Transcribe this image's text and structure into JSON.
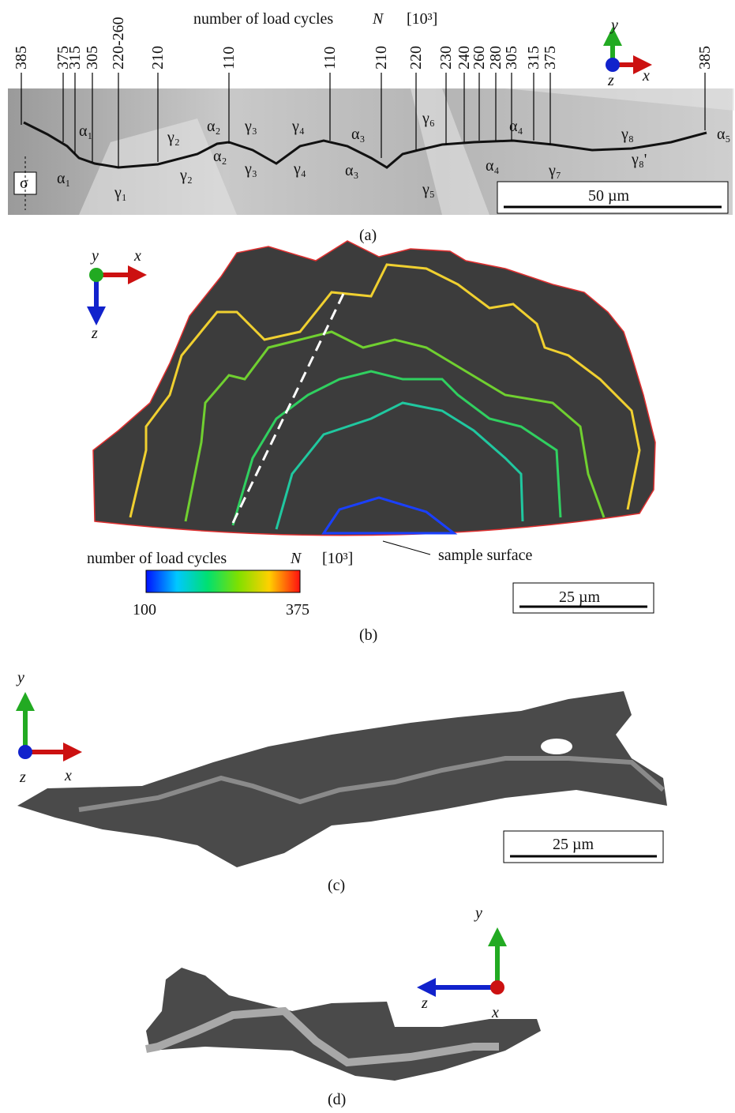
{
  "panels": [
    {
      "label": "(a)",
      "title": {
        "text": "number of load cycles",
        "symbol": "N",
        "unit": "[10³]"
      },
      "cycle_labels": [
        "385",
        "375",
        "315",
        "305",
        "220-260",
        "210",
        "110",
        "110",
        "210",
        "220",
        "230",
        "240",
        "260",
        "280",
        "305",
        "315",
        "375",
        "385"
      ],
      "phase_labels_top": [
        "α₁",
        "γ₂",
        "α₂",
        "γ₃",
        "γ₄",
        "α₃",
        "γ₆",
        "α₄",
        "γ₈",
        "α₅"
      ],
      "phase_labels_bottom": [
        "α₁",
        "γ₁",
        "γ₂",
        "α₂",
        "γ₃",
        "γ₄",
        "α₃",
        "γ₅",
        "α₄",
        "γ₇",
        "γ₈'"
      ],
      "stress": "σ",
      "scale_bar": "50 µm",
      "axes": {
        "y": "y",
        "x": "x",
        "z": "z"
      }
    },
    {
      "label": "(b)",
      "title": {
        "text": "number of load cycles",
        "symbol": "N",
        "unit": "[10³]"
      },
      "colorbar": {
        "min": "100",
        "max": "375"
      },
      "annotation": "sample surface",
      "scale_bar": "25 µm",
      "axes": {
        "y": "y",
        "x": "x",
        "z": "z"
      }
    },
    {
      "label": "(c)",
      "scale_bar": "25 µm",
      "axes": {
        "y": "y",
        "x": "x",
        "z": "z"
      }
    },
    {
      "label": "(d)",
      "axes": {
        "y": "y",
        "x": "x",
        "z": "z"
      }
    }
  ]
}
